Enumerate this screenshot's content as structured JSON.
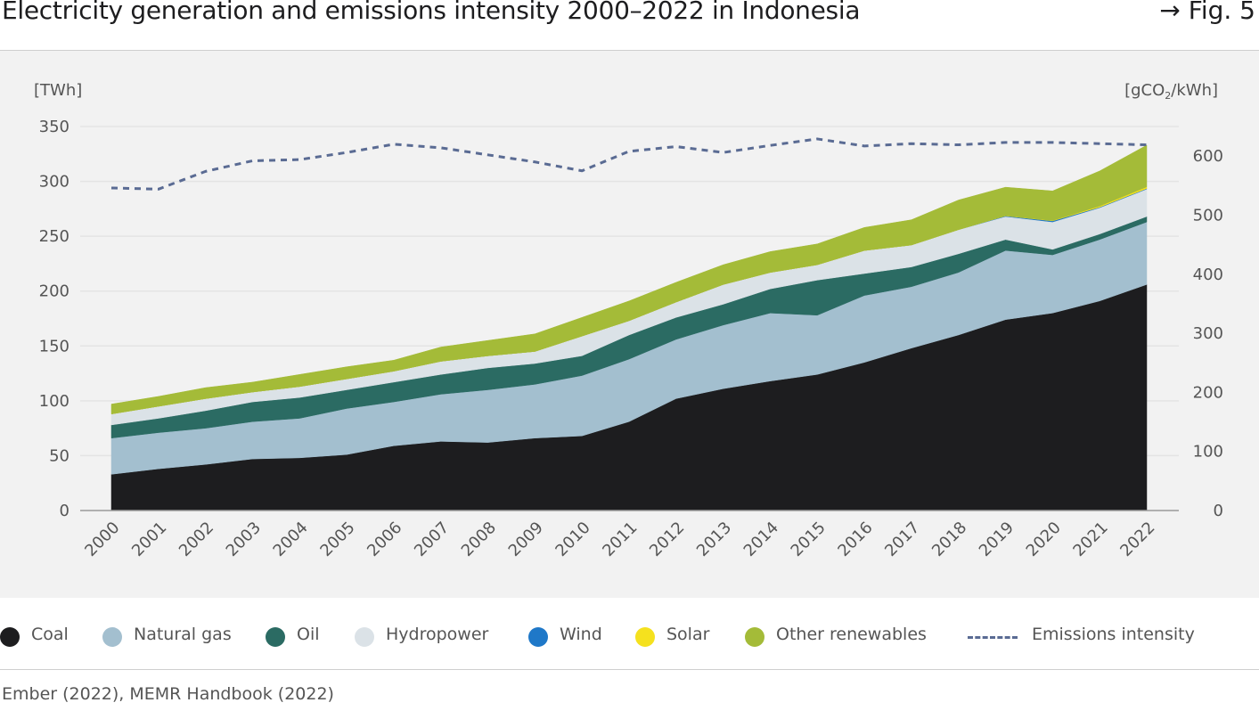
{
  "header": {
    "title": "Electricity generation and emissions intensity 2000–2022 in Indonesia",
    "fig_ref": "→ Fig. 5"
  },
  "axes": {
    "left_unit": "[TWh]",
    "right_unit_pre": "[gCO",
    "right_unit_sub": "2",
    "right_unit_post": "/kWh]"
  },
  "colors": {
    "coal": "#1d1d1f",
    "natural_gas": "#a3bfcf",
    "oil": "#2b6b63",
    "hydropower": "#dbe2e7",
    "wind": "#1f78c8",
    "solar": "#f5e11e",
    "other_renewables": "#a4bb38",
    "emissions_intensity": "#5a6b93",
    "grid": "#e4e4e4",
    "tick_text": "#555555"
  },
  "chart_data": {
    "type": "area",
    "stacked": true,
    "x": [
      "2000",
      "2001",
      "2002",
      "2003",
      "2004",
      "2005",
      "2006",
      "2007",
      "2008",
      "2009",
      "2010",
      "2011",
      "2012",
      "2013",
      "2014",
      "2015",
      "2016",
      "2017",
      "2018",
      "2019",
      "2020",
      "2021",
      "2022"
    ],
    "ylim": [
      0,
      350
    ],
    "yticks": [
      0,
      50,
      100,
      150,
      200,
      250,
      300,
      350
    ],
    "y2lim": [
      0,
      650
    ],
    "y2ticks": [
      0,
      100,
      200,
      300,
      400,
      500,
      600
    ],
    "ylabel": "[TWh]",
    "y2label": "[gCO2/kWh]",
    "grid": true,
    "legend_position": "bottom",
    "series": [
      {
        "name": "Coal",
        "key": "coal",
        "axis": "left",
        "values": [
          33,
          38,
          42,
          47,
          48,
          51,
          59,
          63,
          62,
          66,
          68,
          81,
          102,
          111,
          118,
          124,
          135,
          148,
          160,
          174,
          180,
          191,
          206
        ]
      },
      {
        "name": "Natural gas",
        "key": "natural_gas",
        "axis": "left",
        "values": [
          33,
          33,
          33,
          34,
          36,
          42,
          40,
          43,
          48,
          49,
          55,
          57,
          54,
          58,
          62,
          54,
          61,
          56,
          57,
          63,
          53,
          56,
          57
        ]
      },
      {
        "name": "Oil",
        "key": "oil",
        "axis": "left",
        "values": [
          12,
          13,
          16,
          18,
          19,
          17,
          18,
          18,
          20,
          19,
          18,
          22,
          20,
          19,
          22,
          32,
          20,
          18,
          17,
          10,
          5,
          5,
          5
        ]
      },
      {
        "name": "Hydropower",
        "key": "hydropower",
        "axis": "left",
        "values": [
          10,
          11,
          11,
          9,
          10,
          10,
          10,
          12,
          11,
          11,
          18,
          13,
          14,
          18,
          15,
          14,
          21,
          20,
          22,
          21,
          25,
          24,
          25
        ]
      },
      {
        "name": "Wind",
        "key": "wind",
        "axis": "left",
        "values": [
          0,
          0,
          0,
          0,
          0,
          0,
          0,
          0,
          0,
          0,
          0,
          0,
          0,
          0,
          0,
          0,
          0,
          0,
          0,
          0.5,
          1,
          0.5,
          0.5
        ]
      },
      {
        "name": "Solar",
        "key": "solar",
        "axis": "left",
        "values": [
          0,
          0,
          0,
          0,
          0,
          0,
          0,
          0,
          0,
          0,
          0,
          0,
          0,
          0,
          0,
          0,
          0,
          0,
          0,
          0.2,
          0.3,
          1,
          1.5
        ]
      },
      {
        "name": "Other renewables",
        "key": "other_renewables",
        "axis": "left",
        "values": [
          9,
          9,
          10,
          9,
          11,
          11,
          10,
          13,
          14,
          16,
          17,
          18,
          18,
          18,
          19,
          19,
          21,
          23,
          27,
          26,
          27,
          32,
          38
        ]
      },
      {
        "name": "Emissions intensity",
        "key": "emissions_intensity",
        "axis": "right",
        "style": "dashed-line",
        "values": [
          546,
          544,
          574,
          592,
          594,
          606,
          620,
          614,
          602,
          590,
          575,
          608,
          616,
          606,
          618,
          629,
          617,
          621,
          619,
          623,
          623,
          621,
          619
        ]
      }
    ]
  },
  "legend": {
    "items": [
      {
        "label": "Coal",
        "key": "coal"
      },
      {
        "label": "Natural gas",
        "key": "natural_gas"
      },
      {
        "label": "Oil",
        "key": "oil"
      },
      {
        "label": "Hydropower",
        "key": "hydropower"
      },
      {
        "label": "Wind",
        "key": "wind"
      },
      {
        "label": "Solar",
        "key": "solar"
      },
      {
        "label": "Other renewables",
        "key": "other_renewables"
      },
      {
        "label": "Emissions intensity",
        "key": "emissions_intensity"
      }
    ]
  },
  "footer": {
    "source": "Ember (2022), MEMR Handbook (2022)"
  }
}
